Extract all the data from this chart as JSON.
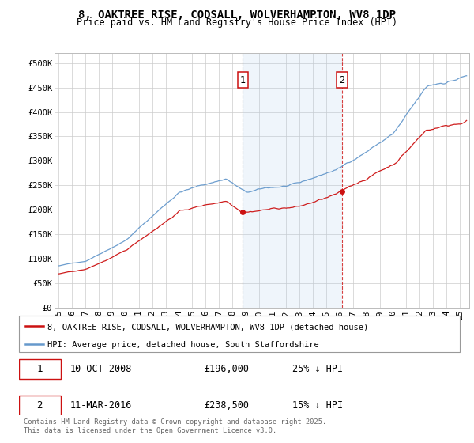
{
  "title_line1": "8, OAKTREE RISE, CODSALL, WOLVERHAMPTON, WV8 1DP",
  "title_line2": "Price paid vs. HM Land Registry's House Price Index (HPI)",
  "hpi_color": "#6699cc",
  "price_color": "#cc1111",
  "event1_line_color": "#888888",
  "event2_line_color": "#cc1111",
  "shading_color": "#ddeeff",
  "event1_date_x": 2008.78,
  "event2_date_x": 2016.19,
  "legend_line1": "8, OAKTREE RISE, CODSALL, WOLVERHAMPTON, WV8 1DP (detached house)",
  "legend_line2": "HPI: Average price, detached house, South Staffordshire",
  "footer": "Contains HM Land Registry data © Crown copyright and database right 2025.\nThis data is licensed under the Open Government Licence v3.0.",
  "ytick_labels": [
    "£0",
    "£50K",
    "£100K",
    "£150K",
    "£200K",
    "£250K",
    "£300K",
    "£350K",
    "£400K",
    "£450K",
    "£500K"
  ],
  "ytick_values": [
    0,
    50000,
    100000,
    150000,
    200000,
    250000,
    300000,
    350000,
    400000,
    450000,
    500000
  ],
  "ymax": 520000,
  "xmin": 1994.7,
  "xmax": 2025.7
}
